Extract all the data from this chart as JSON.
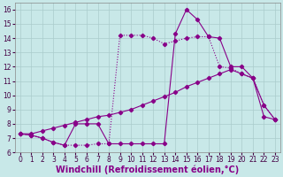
{
  "xlabel": "Windchill (Refroidissement éolien,°C)",
  "background_color": "#c8e8e8",
  "grid_color": "#aacccc",
  "line_color": "#880088",
  "xlim": [
    -0.5,
    23.5
  ],
  "ylim": [
    6.0,
    16.5
  ],
  "xticks": [
    0,
    1,
    2,
    3,
    4,
    5,
    6,
    7,
    8,
    9,
    10,
    11,
    12,
    13,
    14,
    15,
    16,
    17,
    18,
    19,
    20,
    21,
    22,
    23
  ],
  "yticks": [
    6,
    7,
    8,
    9,
    10,
    11,
    12,
    13,
    14,
    15,
    16
  ],
  "s1_x": [
    0,
    1,
    2,
    3,
    4,
    5,
    6,
    7,
    8,
    9,
    10,
    11,
    12,
    13,
    14,
    15,
    16,
    17,
    18,
    19,
    20,
    21,
    22,
    23
  ],
  "s1_y": [
    7.3,
    7.2,
    7.0,
    6.7,
    6.5,
    8.0,
    8.0,
    8.0,
    6.6,
    6.6,
    6.6,
    6.6,
    6.6,
    6.6,
    14.3,
    16.0,
    15.3,
    14.1,
    14.0,
    12.0,
    12.0,
    11.2,
    9.3,
    8.3
  ],
  "s2_x": [
    0,
    1,
    2,
    3,
    4,
    5,
    6,
    7,
    8,
    9,
    10,
    11,
    12,
    13,
    14,
    15,
    16,
    17,
    18,
    19,
    20,
    21,
    22,
    23
  ],
  "s2_y": [
    7.3,
    7.2,
    7.0,
    6.7,
    6.5,
    6.5,
    6.5,
    6.6,
    6.6,
    14.2,
    14.2,
    14.2,
    14.0,
    13.6,
    13.8,
    14.0,
    14.1,
    14.1,
    12.0,
    11.9,
    11.5,
    11.2,
    9.3,
    8.3
  ],
  "s3_x": [
    0,
    1,
    2,
    3,
    4,
    5,
    6,
    7,
    8,
    9,
    10,
    11,
    12,
    13,
    14,
    15,
    16,
    17,
    18,
    19,
    20,
    21,
    22,
    23
  ],
  "s3_y": [
    7.3,
    7.3,
    7.5,
    7.7,
    7.9,
    8.1,
    8.3,
    8.5,
    8.6,
    8.8,
    9.0,
    9.3,
    9.6,
    9.9,
    10.2,
    10.6,
    10.9,
    11.2,
    11.5,
    11.8,
    11.5,
    11.2,
    8.5,
    8.3
  ],
  "tick_fontsize": 5.5,
  "xlabel_fontsize": 7.0,
  "markersize": 2.2,
  "linewidth": 0.8
}
